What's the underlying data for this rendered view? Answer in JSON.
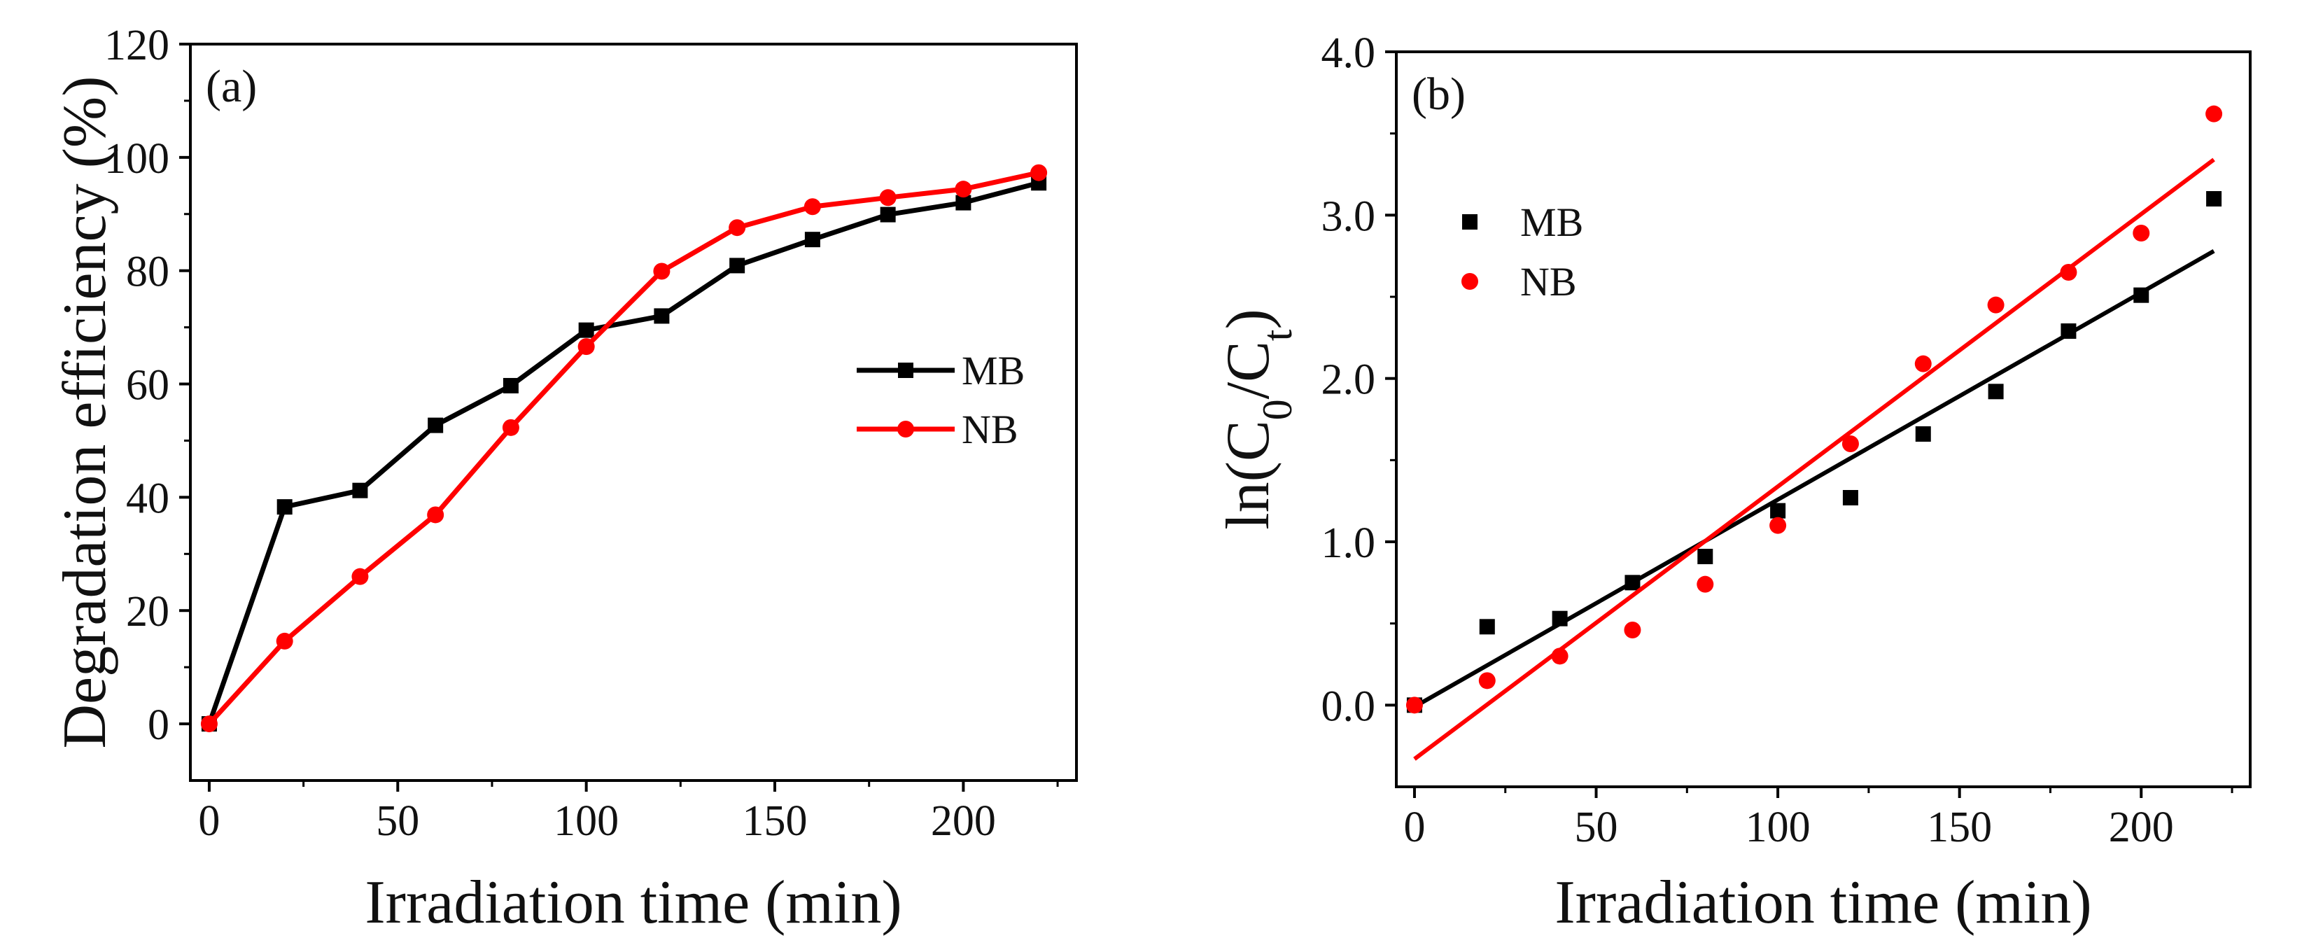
{
  "colors": {
    "MB": "#000000",
    "NB": "#ff0000"
  },
  "chart_data": [
    {
      "type": "line",
      "panel_label": "(a)",
      "xlabel": "Irradiation time (min)",
      "ylabel": "Degradation efficiency (%)",
      "xlim": [
        -5,
        230
      ],
      "ylim": [
        -10,
        120
      ],
      "xticks": [
        0,
        50,
        100,
        150,
        200
      ],
      "yticks": [
        0,
        20,
        40,
        60,
        80,
        100,
        120
      ],
      "x": [
        0,
        20,
        40,
        60,
        80,
        100,
        120,
        140,
        160,
        180,
        200,
        220
      ],
      "legend_position": "center-right",
      "series": [
        {
          "name": "MB",
          "marker": "square",
          "values": [
            0,
            38.3,
            41.2,
            52.7,
            59.7,
            69.5,
            72.0,
            80.9,
            85.5,
            89.9,
            92.0,
            95.5
          ]
        },
        {
          "name": "NB",
          "marker": "circle",
          "values": [
            0,
            14.6,
            26.0,
            36.9,
            52.3,
            66.6,
            79.9,
            87.6,
            91.3,
            92.9,
            94.4,
            97.3
          ]
        }
      ]
    },
    {
      "type": "scatter",
      "panel_label": "(b)",
      "xlabel": "Irradiation time (min)",
      "ylabel": "ln(C0/Ct)",
      "ylabel_parts": {
        "pre": "ln(C",
        "sub1": "0",
        "mid": "/C",
        "sub2": "t",
        "post": ")"
      },
      "xlim": [
        -5,
        230
      ],
      "ylim": [
        -0.5,
        4.0
      ],
      "xticks": [
        0,
        50,
        100,
        150,
        200
      ],
      "yticks": [
        "0.0",
        "1.0",
        "2.0",
        "3.0",
        "4.0"
      ],
      "x": [
        0,
        20,
        40,
        60,
        80,
        100,
        120,
        140,
        160,
        180,
        200,
        220
      ],
      "legend_position": "top-left",
      "series": [
        {
          "name": "MB",
          "marker": "square",
          "values": [
            0,
            0.48,
            0.53,
            0.75,
            0.91,
            1.19,
            1.27,
            1.66,
            1.92,
            2.29,
            2.51,
            3.1
          ],
          "fit": [
            [
              0,
              -0.01
            ],
            [
              220,
              2.78
            ]
          ]
        },
        {
          "name": "NB",
          "marker": "circle",
          "values": [
            0,
            0.15,
            0.3,
            0.46,
            0.74,
            1.1,
            1.6,
            2.09,
            2.45,
            2.65,
            2.89,
            3.62
          ],
          "fit": [
            [
              0,
              -0.33
            ],
            [
              220,
              3.34
            ]
          ]
        }
      ]
    }
  ]
}
